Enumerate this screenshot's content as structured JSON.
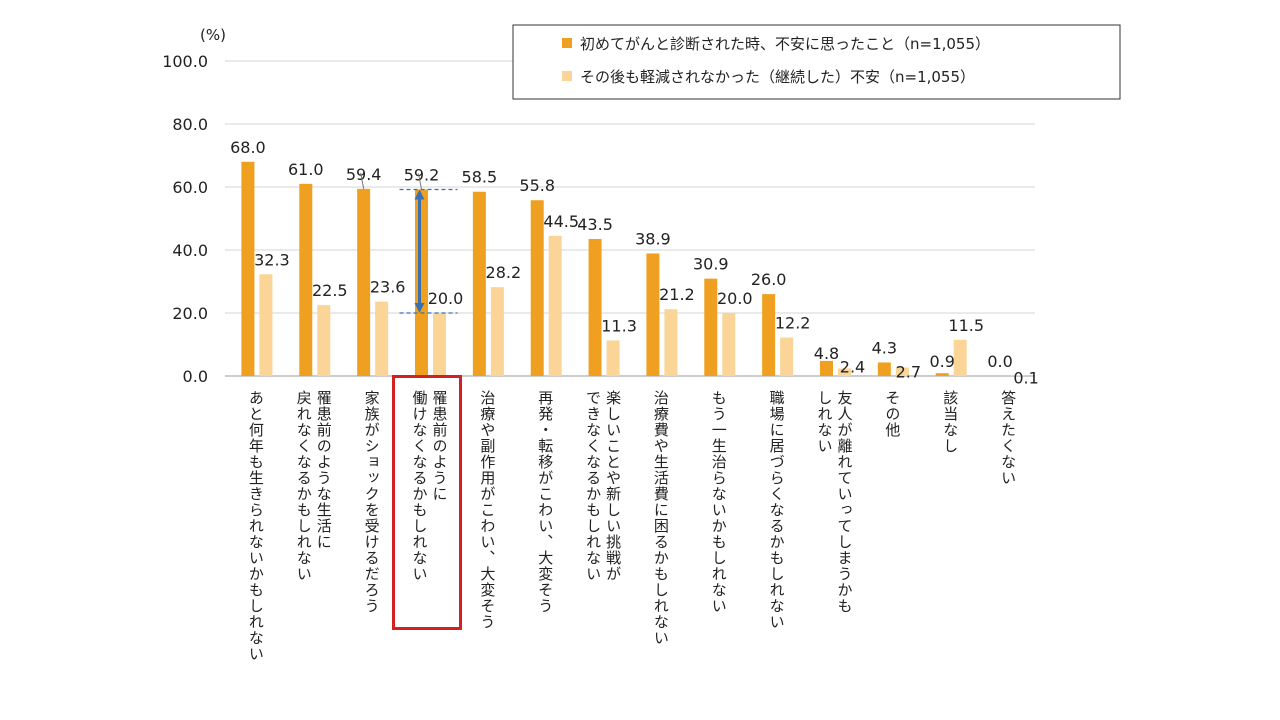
{
  "chart_data": {
    "type": "bar",
    "ylabel": "(%)",
    "ylim": [
      0,
      100
    ],
    "yticks": [
      "0.0",
      "20.0",
      "40.0",
      "60.0",
      "80.0",
      "100.0"
    ],
    "categories": [
      "あと何年も生きられないかもしれない",
      "罹患前のような生活に\n戻れなくなるかもしれない",
      "家族がショックを受けるだろう",
      "罹患前のように\n働けなくなるかもしれない",
      "治療や副作用がこわい、大変そう",
      "再発・転移がこわい、大変そう",
      "楽しいことや新しい挑戦が\nできなくなるかもしれない",
      "治療費や生活費に困るかもしれない",
      "もう一生治らないかもしれない",
      "職場に居づらくなるかもしれない",
      "友人が離れていってしまうかも\nしれない",
      "その他",
      "該当なし",
      "答えたくない"
    ],
    "series": [
      {
        "name": "初めてがんと診断された時、不安に思ったこと（n=1,055）",
        "color": "#F0A020",
        "values": [
          68.0,
          61.0,
          59.4,
          59.2,
          58.5,
          55.8,
          43.5,
          38.9,
          30.9,
          26.0,
          4.8,
          4.3,
          0.9,
          0.0
        ],
        "labels": [
          "68.0",
          "61.0",
          "59.4",
          "59.2",
          "58.5",
          "55.8",
          "43.5",
          "38.9",
          "30.9",
          "26.0",
          "4.8",
          "4.3",
          "0.9",
          "0.0"
        ]
      },
      {
        "name": "その後も軽減されなかった（継続した）不安（n=1,055）",
        "color": "#FAD597",
        "values": [
          32.3,
          22.5,
          23.6,
          20.0,
          28.2,
          44.5,
          11.3,
          21.2,
          20.0,
          12.2,
          2.4,
          2.7,
          11.5,
          0.1
        ],
        "labels": [
          "32.3",
          "22.5",
          "23.6",
          "20.0",
          "28.2",
          "44.5",
          "11.3",
          "21.2",
          "20.0",
          "12.2",
          "2.4",
          "2.7",
          "11.5",
          "0.1"
        ]
      }
    ],
    "highlight_category_index": 3,
    "highlight_color": "#D32020",
    "arrow_color": "#3A6FB0"
  }
}
